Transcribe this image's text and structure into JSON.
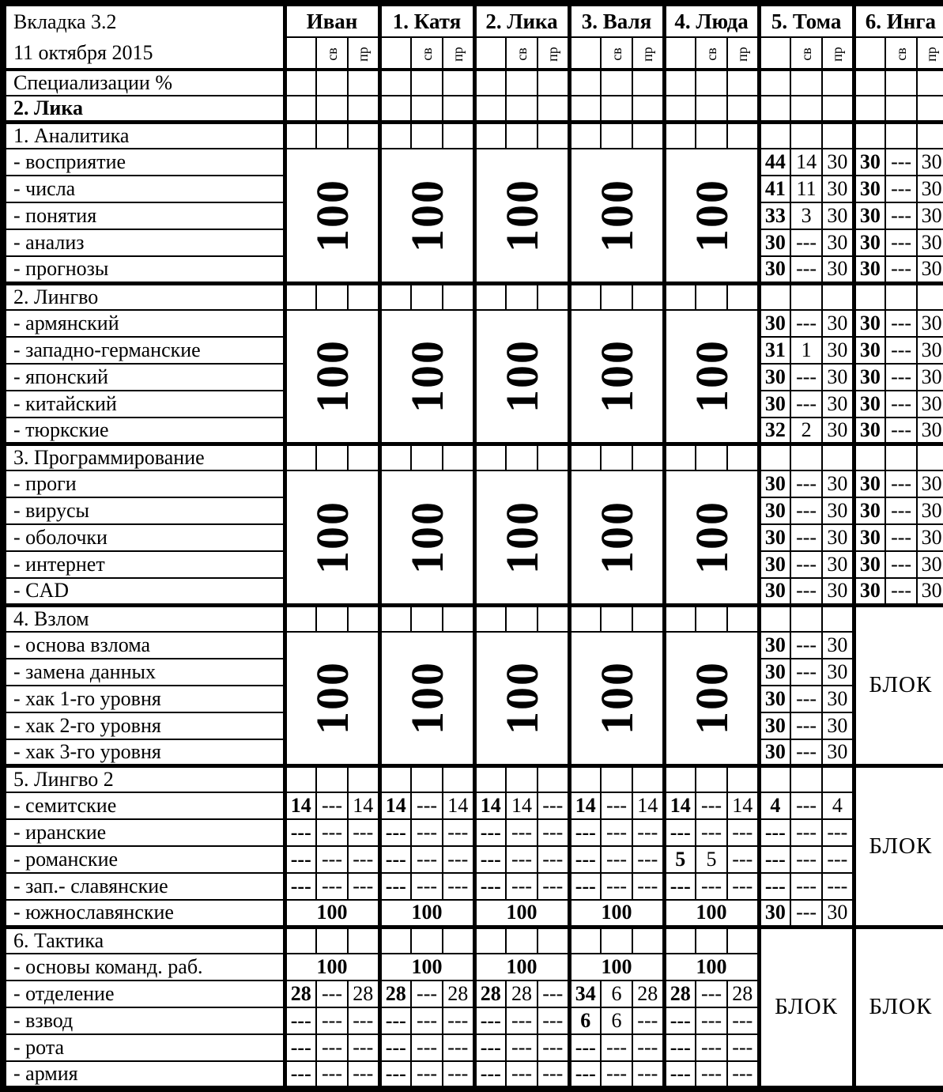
{
  "header": {
    "title": "Вкладка 3.2",
    "date": "11 октября 2015",
    "spec_row": "Специализации %",
    "person_row": "2. Лика",
    "columns": [
      "Иван",
      "1. Катя",
      "2. Лика",
      "3. Валя",
      "4. Люда",
      "5. Тома",
      "6. Инга"
    ],
    "subcolumns": [
      "св",
      "пр"
    ]
  },
  "labels": {
    "block": "БЛОК",
    "full": "100",
    "none": "---"
  },
  "sections": [
    {
      "title": "1. Аналитика",
      "rows": [
        "- восприятие",
        "- числа",
        "- понятия",
        "- анализ",
        "- прогнозы"
      ],
      "cols": [
        {
          "type": "v100"
        },
        {
          "type": "v100"
        },
        {
          "type": "v100"
        },
        {
          "type": "v100"
        },
        {
          "type": "v100"
        },
        {
          "type": "cells",
          "rows": [
            [
              "44",
              "14",
              "30"
            ],
            [
              "41",
              "11",
              "30"
            ],
            [
              "33",
              "3",
              "30"
            ],
            [
              "30",
              "---",
              "30"
            ],
            [
              "30",
              "---",
              "30"
            ]
          ]
        },
        {
          "type": "cells",
          "rows": [
            [
              "30",
              "---",
              "30"
            ],
            [
              "30",
              "---",
              "30"
            ],
            [
              "30",
              "---",
              "30"
            ],
            [
              "30",
              "---",
              "30"
            ],
            [
              "30",
              "---",
              "30"
            ]
          ]
        }
      ]
    },
    {
      "title": "2. Лингво",
      "rows": [
        "- армянский",
        "- западно-германские",
        "- японский",
        "- китайский",
        "- тюркские"
      ],
      "cols": [
        {
          "type": "v100"
        },
        {
          "type": "v100"
        },
        {
          "type": "v100"
        },
        {
          "type": "v100"
        },
        {
          "type": "v100"
        },
        {
          "type": "cells",
          "rows": [
            [
              "30",
              "---",
              "30"
            ],
            [
              "31",
              "1",
              "30"
            ],
            [
              "30",
              "---",
              "30"
            ],
            [
              "30",
              "---",
              "30"
            ],
            [
              "32",
              "2",
              "30"
            ]
          ]
        },
        {
          "type": "cells",
          "rows": [
            [
              "30",
              "---",
              "30"
            ],
            [
              "30",
              "---",
              "30"
            ],
            [
              "30",
              "---",
              "30"
            ],
            [
              "30",
              "---",
              "30"
            ],
            [
              "30",
              "---",
              "30"
            ]
          ]
        }
      ]
    },
    {
      "title": "3. Программирование",
      "rows": [
        "- проги",
        "- вирусы",
        "- оболочки",
        "- интернет",
        "- CAD"
      ],
      "cols": [
        {
          "type": "v100"
        },
        {
          "type": "v100"
        },
        {
          "type": "v100"
        },
        {
          "type": "v100"
        },
        {
          "type": "v100"
        },
        {
          "type": "cells",
          "rows": [
            [
              "30",
              "---",
              "30"
            ],
            [
              "30",
              "---",
              "30"
            ],
            [
              "30",
              "---",
              "30"
            ],
            [
              "30",
              "---",
              "30"
            ],
            [
              "30",
              "---",
              "30"
            ]
          ]
        },
        {
          "type": "cells",
          "rows": [
            [
              "30",
              "---",
              "30"
            ],
            [
              "30",
              "---",
              "30"
            ],
            [
              "30",
              "---",
              "30"
            ],
            [
              "30",
              "---",
              "30"
            ],
            [
              "30",
              "---",
              "30"
            ]
          ]
        }
      ]
    },
    {
      "title": "4. Взлом",
      "rows": [
        "- основа взлома",
        "- замена данных",
        "- хак 1-го уровня",
        "- хак 2-го уровня",
        "- хак 3-го уровня"
      ],
      "cols": [
        {
          "type": "v100"
        },
        {
          "type": "v100"
        },
        {
          "type": "v100"
        },
        {
          "type": "v100"
        },
        {
          "type": "v100"
        },
        {
          "type": "cells",
          "rows": [
            [
              "30",
              "---",
              "30"
            ],
            [
              "30",
              "---",
              "30"
            ],
            [
              "30",
              "---",
              "30"
            ],
            [
              "30",
              "---",
              "30"
            ],
            [
              "30",
              "---",
              "30"
            ]
          ]
        },
        {
          "type": "block"
        }
      ]
    },
    {
      "title": "5. Лингво 2",
      "rows": [
        "- семитские",
        "- иранские",
        "- романские",
        "- зап.- славянские",
        "- южнославянские"
      ],
      "cols": [
        {
          "type": "cells",
          "rows": [
            [
              "14",
              "---",
              "14"
            ],
            [
              "---",
              "---",
              "---"
            ],
            [
              "---",
              "---",
              "---"
            ],
            [
              "---",
              "---",
              "---"
            ],
            "100"
          ]
        },
        {
          "type": "cells",
          "rows": [
            [
              "14",
              "---",
              "14"
            ],
            [
              "---",
              "---",
              "---"
            ],
            [
              "---",
              "---",
              "---"
            ],
            [
              "---",
              "---",
              "---"
            ],
            "100"
          ]
        },
        {
          "type": "cells",
          "rows": [
            [
              "14",
              "14",
              "---"
            ],
            [
              "---",
              "---",
              "---"
            ],
            [
              "---",
              "---",
              "---"
            ],
            [
              "---",
              "---",
              "---"
            ],
            "100"
          ]
        },
        {
          "type": "cells",
          "rows": [
            [
              "14",
              "---",
              "14"
            ],
            [
              "---",
              "---",
              "---"
            ],
            [
              "---",
              "---",
              "---"
            ],
            [
              "---",
              "---",
              "---"
            ],
            "100"
          ]
        },
        {
          "type": "cells",
          "rows": [
            [
              "14",
              "---",
              "14"
            ],
            [
              "---",
              "---",
              "---"
            ],
            [
              "5",
              "5",
              "---"
            ],
            [
              "---",
              "---",
              "---"
            ],
            "100"
          ]
        },
        {
          "type": "cells",
          "rows": [
            [
              "4",
              "---",
              "4"
            ],
            [
              "---",
              "---",
              "---"
            ],
            [
              "---",
              "---",
              "---"
            ],
            [
              "---",
              "---",
              "---"
            ],
            [
              "30",
              "---",
              "30"
            ]
          ]
        },
        {
          "type": "block"
        }
      ]
    },
    {
      "title": "6. Тактика",
      "rows": [
        "- основы команд. раб.",
        "- отделение",
        "- взвод",
        "- рота",
        "- армия"
      ],
      "cols": [
        {
          "type": "cells",
          "rows": [
            "100",
            [
              "28",
              "---",
              "28"
            ],
            [
              "---",
              "---",
              "---"
            ],
            [
              "---",
              "---",
              "---"
            ],
            [
              "---",
              "---",
              "---"
            ]
          ]
        },
        {
          "type": "cells",
          "rows": [
            "100",
            [
              "28",
              "---",
              "28"
            ],
            [
              "---",
              "---",
              "---"
            ],
            [
              "---",
              "---",
              "---"
            ],
            [
              "---",
              "---",
              "---"
            ]
          ]
        },
        {
          "type": "cells",
          "rows": [
            "100",
            [
              "28",
              "28",
              "---"
            ],
            [
              "---",
              "---",
              "---"
            ],
            [
              "---",
              "---",
              "---"
            ],
            [
              "---",
              "---",
              "---"
            ]
          ]
        },
        {
          "type": "cells",
          "rows": [
            "100",
            [
              "34",
              "6",
              "28"
            ],
            [
              "6",
              "6",
              "---"
            ],
            [
              "---",
              "---",
              "---"
            ],
            [
              "---",
              "---",
              "---"
            ]
          ]
        },
        {
          "type": "cells",
          "rows": [
            "100",
            [
              "28",
              "---",
              "28"
            ],
            [
              "---",
              "---",
              "---"
            ],
            [
              "---",
              "---",
              "---"
            ],
            [
              "---",
              "---",
              "---"
            ]
          ]
        },
        {
          "type": "block"
        },
        {
          "type": "block"
        }
      ]
    }
  ]
}
